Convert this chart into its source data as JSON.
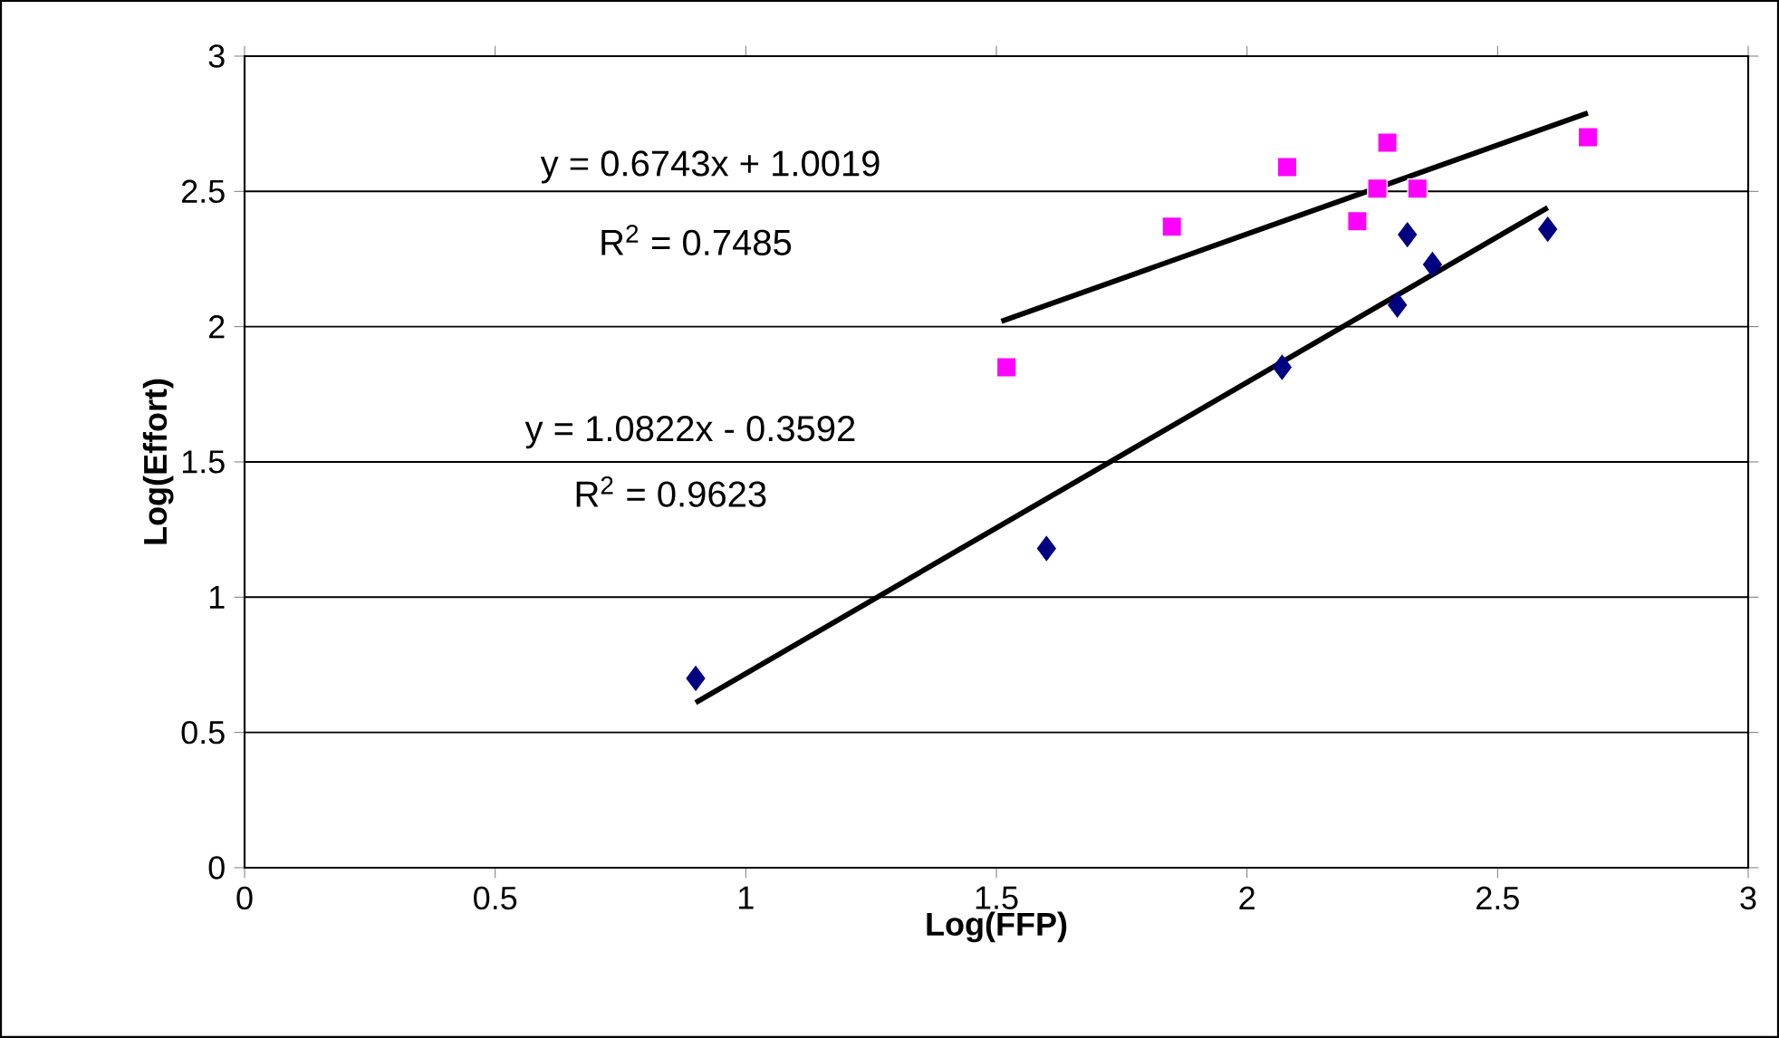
{
  "chart_data": {
    "type": "scatter",
    "xlabel": "Log(FFP)",
    "ylabel": "Log(Effort)",
    "xlim": [
      0,
      3
    ],
    "ylim": [
      0,
      3
    ],
    "xticks": [
      0,
      0.5,
      1,
      1.5,
      2,
      2.5,
      3
    ],
    "yticks": [
      0,
      0.5,
      1,
      1.5,
      2,
      2.5,
      3
    ],
    "grid": "y",
    "series": [
      {
        "color": "#000080",
        "marker": "diamond",
        "x": [
          0.9,
          1.6,
          2.07,
          2.3,
          2.32,
          2.37,
          2.6
        ],
        "values": [
          0.7,
          1.18,
          1.85,
          2.08,
          2.34,
          2.23,
          2.36
        ]
      },
      {
        "color": "#ff00ff",
        "marker": "square",
        "x": [
          1.52,
          1.85,
          2.08,
          2.22,
          2.26,
          2.28,
          2.34,
          2.68
        ],
        "values": [
          1.85,
          2.37,
          2.59,
          2.39,
          2.51,
          2.68,
          2.51,
          2.7
        ]
      },
      {
        "type": "line",
        "color": "#000000",
        "marker": "none",
        "x": [
          0.9,
          2.6
        ],
        "values": [
          0.61,
          2.44
        ]
      },
      {
        "type": "line",
        "color": "#000000",
        "marker": "none",
        "x": [
          1.51,
          2.68
        ],
        "values": [
          2.02,
          2.79
        ]
      }
    ],
    "annotations": [
      "y = 0.6743x + 1.0019",
      "R$^{2}$ = 0.7485",
      "y = 1.0822x - 0.3592",
      "R$^{2}$ = 0.9623"
    ]
  }
}
